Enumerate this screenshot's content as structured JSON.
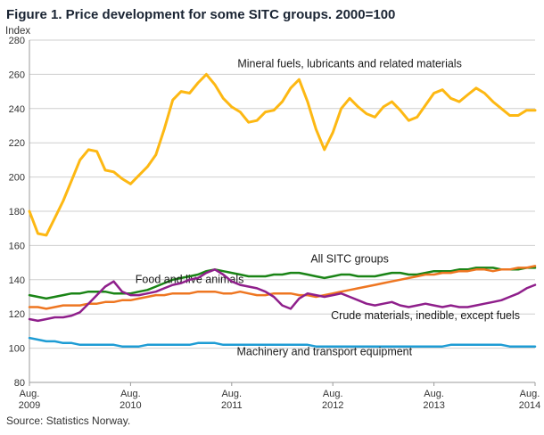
{
  "source": "Source: Statistics Norway.",
  "chart_data": {
    "type": "line",
    "title": "Figure 1. Price development for some SITC groups. 2000=100",
    "ylabel": "Index",
    "xlabel": "",
    "ylim": [
      80,
      280
    ],
    "ytick_step": 20,
    "grid": true,
    "legend_position": "inline-annotations",
    "x_unit": "month",
    "x_range": "Aug 2009 - Aug 2014",
    "x_ticks": [
      {
        "pos": 0,
        "line1": "Aug.",
        "line2": "2009"
      },
      {
        "pos": 12,
        "line1": "Aug.",
        "line2": "2010"
      },
      {
        "pos": 24,
        "line1": "Aug.",
        "line2": "2011"
      },
      {
        "pos": 36,
        "line1": "Aug.",
        "line2": "2012"
      },
      {
        "pos": 48,
        "line1": "Aug.",
        "line2": "2013"
      },
      {
        "pos": 60,
        "line1": "Aug.",
        "line2": "2014"
      }
    ],
    "series": [
      {
        "id": "mineral-fuels",
        "name": "Mineral fuels, lubricants and related materials",
        "color": "#fdb813",
        "width": 3,
        "label_pos": {
          "x": 38,
          "y": 264
        },
        "values": [
          180,
          167,
          166,
          176,
          186,
          198,
          210,
          216,
          215,
          204,
          203,
          199,
          196,
          201,
          206,
          213,
          228,
          245,
          250,
          249,
          255,
          260,
          254,
          246,
          241,
          238,
          232,
          233,
          238,
          239,
          244,
          252,
          257,
          244,
          228,
          216,
          226,
          240,
          246,
          241,
          237,
          235,
          241,
          244,
          239,
          233,
          235,
          242,
          249,
          251,
          246,
          244,
          248,
          252,
          249,
          244,
          240,
          236,
          236,
          239,
          239
        ]
      },
      {
        "id": "all-sitc",
        "name": "All SITC groups",
        "color": "#1a8416",
        "width": 2.5,
        "label_pos": {
          "x": 38,
          "y": 150
        },
        "values": [
          131,
          130,
          129,
          130,
          131,
          132,
          132,
          133,
          133,
          133,
          132,
          132,
          132,
          133,
          134,
          136,
          138,
          140,
          141,
          142,
          143,
          145,
          146,
          145,
          144,
          143,
          142,
          142,
          142,
          143,
          143,
          144,
          144,
          143,
          142,
          141,
          142,
          143,
          143,
          142,
          142,
          142,
          143,
          144,
          144,
          143,
          143,
          144,
          145,
          145,
          145,
          146,
          146,
          147,
          147,
          147,
          146,
          146,
          146,
          147,
          147
        ]
      },
      {
        "id": "food",
        "name": "Food and live animals",
        "color": "#ee7621",
        "width": 2.5,
        "label_pos": {
          "x": 19,
          "y": 138
        },
        "values": [
          124,
          124,
          123,
          124,
          125,
          125,
          125,
          126,
          126,
          127,
          127,
          128,
          128,
          129,
          130,
          131,
          131,
          132,
          132,
          132,
          133,
          133,
          133,
          132,
          132,
          133,
          132,
          131,
          131,
          132,
          132,
          132,
          131,
          131,
          130,
          131,
          132,
          133,
          134,
          135,
          136,
          137,
          138,
          139,
          140,
          141,
          142,
          143,
          143,
          144,
          144,
          145,
          145,
          146,
          146,
          145,
          146,
          146,
          147,
          147,
          148
        ]
      },
      {
        "id": "crude-materials",
        "name": "Crude materials, inedible, except fuels",
        "color": "#8f1f8b",
        "width": 2.5,
        "label_pos": {
          "x": 47,
          "y": 117
        },
        "values": [
          117,
          116,
          117,
          118,
          118,
          119,
          121,
          126,
          131,
          136,
          139,
          133,
          131,
          131,
          132,
          133,
          135,
          137,
          138,
          140,
          141,
          144,
          146,
          143,
          139,
          137,
          136,
          135,
          133,
          130,
          125,
          123,
          129,
          132,
          131,
          130,
          131,
          132,
          130,
          128,
          126,
          125,
          126,
          127,
          125,
          124,
          125,
          126,
          125,
          124,
          125,
          124,
          124,
          125,
          126,
          127,
          128,
          130,
          132,
          135,
          137
        ]
      },
      {
        "id": "machinery",
        "name": "Machinery and transport equipment",
        "color": "#1e9cd4",
        "width": 2.5,
        "label_pos": {
          "x": 35,
          "y": 96
        },
        "values": [
          106,
          105,
          104,
          104,
          103,
          103,
          102,
          102,
          102,
          102,
          102,
          101,
          101,
          101,
          102,
          102,
          102,
          102,
          102,
          102,
          103,
          103,
          103,
          102,
          102,
          102,
          102,
          102,
          102,
          102,
          102,
          102,
          102,
          102,
          101,
          101,
          101,
          101,
          101,
          101,
          101,
          101,
          101,
          101,
          101,
          101,
          101,
          101,
          101,
          101,
          102,
          102,
          102,
          102,
          102,
          102,
          102,
          101,
          101,
          101,
          101
        ]
      }
    ]
  }
}
